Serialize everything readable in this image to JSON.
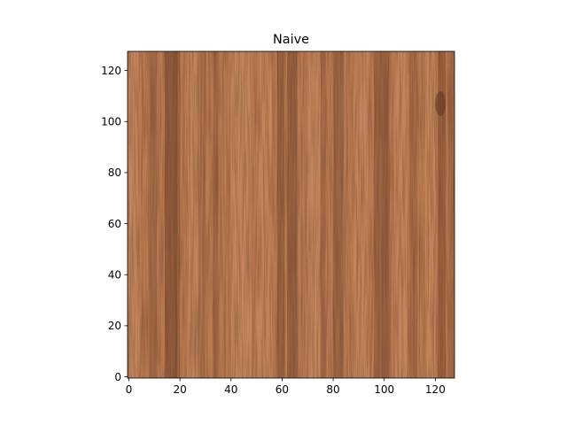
{
  "chart_data": {
    "type": "heatmap",
    "title": "Naive",
    "xlabel": "",
    "ylabel": "",
    "xlim": [
      -0.5,
      127.5
    ],
    "ylim": [
      127.5,
      -0.5
    ],
    "x_ticks": [
      0,
      20,
      40,
      60,
      80,
      100,
      120
    ],
    "y_ticks": [
      0,
      20,
      40,
      60,
      80,
      100,
      120
    ],
    "image_size": [
      128,
      128
    ],
    "image_content": "wood grain texture with vertical dark streaks",
    "colors": {
      "base": "#b97a52",
      "light": "#d49b70",
      "dark": "#6e4128",
      "frame": "#000000",
      "text": "#000000"
    }
  }
}
